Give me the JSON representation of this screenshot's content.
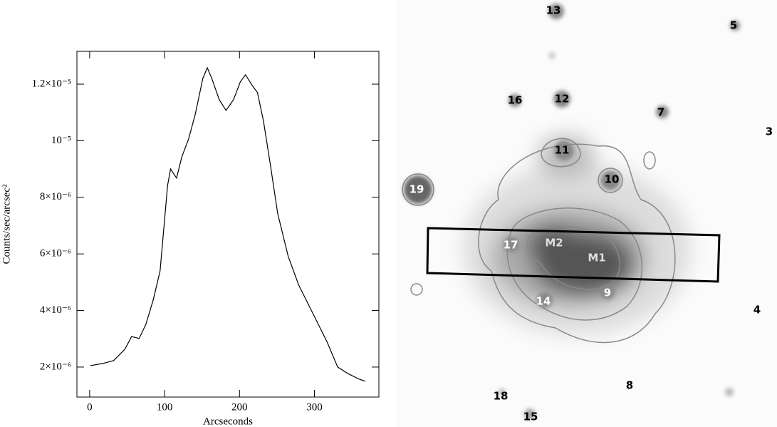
{
  "chart_data": {
    "type": "line",
    "x_label": "Arcseconds",
    "y_label": "Counts/sec/arcsec²",
    "x": [
      1,
      18,
      32,
      47,
      56,
      66,
      75,
      85,
      94,
      104,
      108,
      116,
      123,
      132,
      141,
      151,
      157,
      163,
      173,
      182,
      192,
      201,
      208,
      217,
      224,
      232,
      241,
      251,
      265,
      279,
      298,
      317,
      331,
      346,
      360,
      368
    ],
    "series": [
      {
        "color": "#000000",
        "values": [
          2.05e-06,
          2.13e-06,
          2.23e-06,
          2.63e-06,
          3.08e-06,
          3.01e-06,
          3.51e-06,
          4.39e-06,
          5.4e-06,
          8.42e-06,
          9e-06,
          8.68e-06,
          9.43e-06,
          1.006e-05,
          1.094e-05,
          1.22e-05,
          1.258e-05,
          1.22e-05,
          1.145e-05,
          1.107e-05,
          1.145e-05,
          1.208e-05,
          1.233e-05,
          1.195e-05,
          1.17e-05,
          1.069e-05,
          9.18e-06,
          7.42e-06,
          5.91e-06,
          4.9e-06,
          3.89e-06,
          2.88e-06,
          2e-06,
          1.75e-06,
          1.57e-06,
          1.5e-06
        ]
      }
    ],
    "xlim": [
      -17,
      386
    ],
    "ylim": [
      9.4e-07,
      1.316e-05
    ],
    "xticks": [
      0,
      100,
      200,
      300
    ],
    "yticks": [
      {
        "value": 2e-06,
        "label": "2×10⁻⁶"
      },
      {
        "value": 4e-06,
        "label": "4×10⁻⁶"
      },
      {
        "value": 6e-06,
        "label": "6×10⁻⁶"
      },
      {
        "value": 8e-06,
        "label": "8×10⁻⁶"
      },
      {
        "value": 1e-05,
        "label": "10⁻⁵"
      },
      {
        "value": 1.2e-05,
        "label": "1.2×10⁻⁵"
      }
    ]
  },
  "image_labels": [
    "13",
    "5",
    "16",
    "12",
    "7",
    "3",
    "11",
    "10",
    "19",
    "17",
    "M2",
    "M1",
    "9",
    "14",
    "4",
    "8",
    "18",
    "15"
  ]
}
